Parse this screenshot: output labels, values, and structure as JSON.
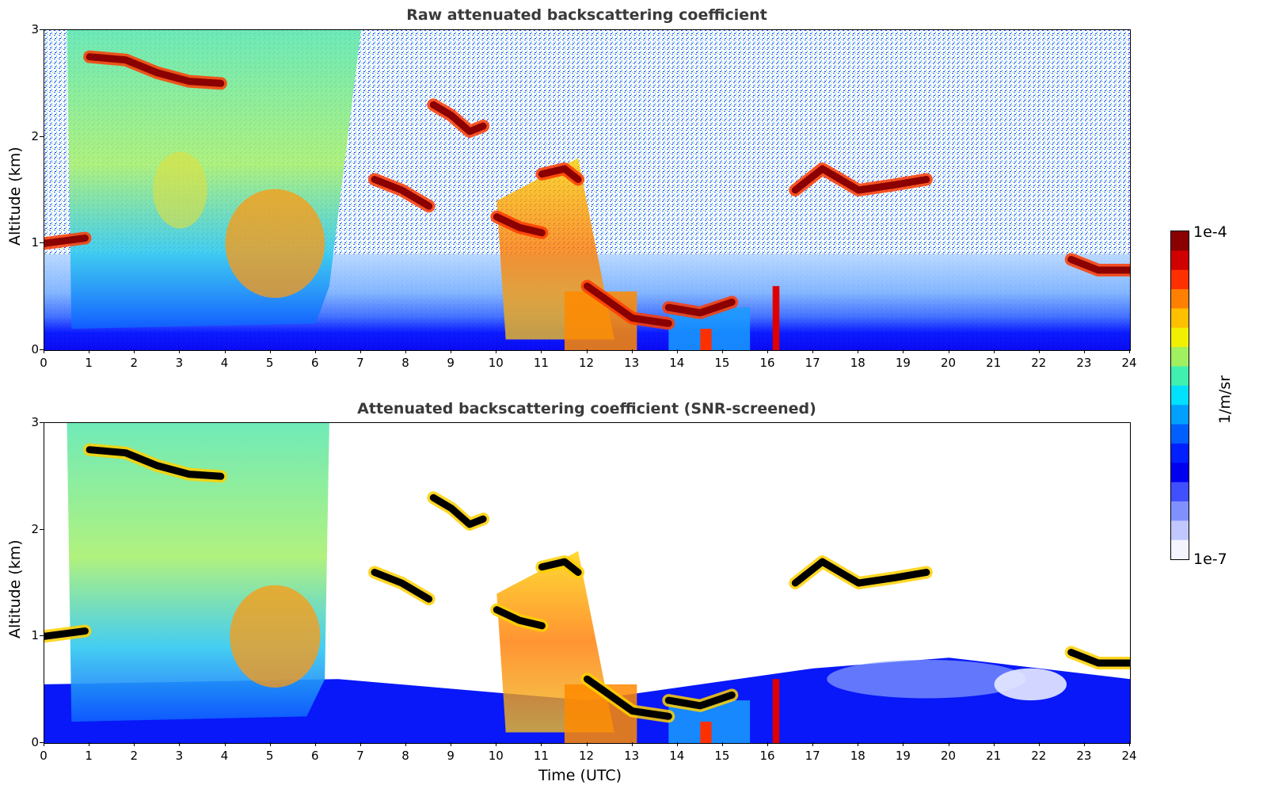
{
  "chart_data": [
    {
      "type": "heatmap",
      "title": "Raw attenuated backscattering coefficient",
      "xlabel": "",
      "ylabel": "Altitude (km)",
      "xlim": [
        0,
        24
      ],
      "ylim": [
        0,
        3
      ],
      "x_ticks": [
        "0",
        "1",
        "2",
        "3",
        "4",
        "5",
        "6",
        "7",
        "8",
        "9",
        "10",
        "11",
        "12",
        "13",
        "14",
        "15",
        "16",
        "17",
        "18",
        "19",
        "20",
        "21",
        "22",
        "23",
        "24"
      ],
      "y_ticks": [
        "0",
        "1",
        "2",
        "3"
      ],
      "cloud_layers": [
        {
          "t_start": 0.0,
          "t_end": 0.9,
          "alt_km": 0.99,
          "value": 0.0001
        },
        {
          "t_start": 1.0,
          "t_end": 3.9,
          "alt_km": 2.6,
          "value": 0.0001
        },
        {
          "t_start": 7.3,
          "t_end": 8.5,
          "alt_km": 1.5,
          "value": 0.0001
        },
        {
          "t_start": 8.6,
          "t_end": 9.7,
          "alt_km": 2.15,
          "value": 0.0001
        },
        {
          "t_start": 10.0,
          "t_end": 11.0,
          "alt_km": 1.2,
          "value": 0.0001
        },
        {
          "t_start": 11.0,
          "t_end": 11.8,
          "alt_km": 1.65,
          "value": 0.0001
        },
        {
          "t_start": 12.0,
          "t_end": 14.0,
          "alt_km": 0.3,
          "value": 0.0001
        },
        {
          "t_start": 16.5,
          "t_end": 19.5,
          "alt_km": 1.55,
          "value": 0.0001
        },
        {
          "t_start": 22.7,
          "t_end": 24.0,
          "alt_km": 0.78,
          "value": 0.0001
        }
      ]
    },
    {
      "type": "heatmap",
      "title": "Attenuated backscattering coefficient (SNR-screened)",
      "xlabel": "Time (UTC)",
      "ylabel": "Altitude (km)",
      "xlim": [
        0,
        24
      ],
      "ylim": [
        0,
        3
      ],
      "x_ticks": [
        "0",
        "1",
        "2",
        "3",
        "4",
        "5",
        "6",
        "7",
        "8",
        "9",
        "10",
        "11",
        "12",
        "13",
        "14",
        "15",
        "16",
        "17",
        "18",
        "19",
        "20",
        "21",
        "22",
        "23",
        "24"
      ],
      "y_ticks": [
        "0",
        "1",
        "2",
        "3"
      ]
    }
  ],
  "colorbar": {
    "label": "1/m/sr",
    "min_label": "1e-7",
    "max_label": "1e-4",
    "scale": "log",
    "colormap": "jet"
  }
}
